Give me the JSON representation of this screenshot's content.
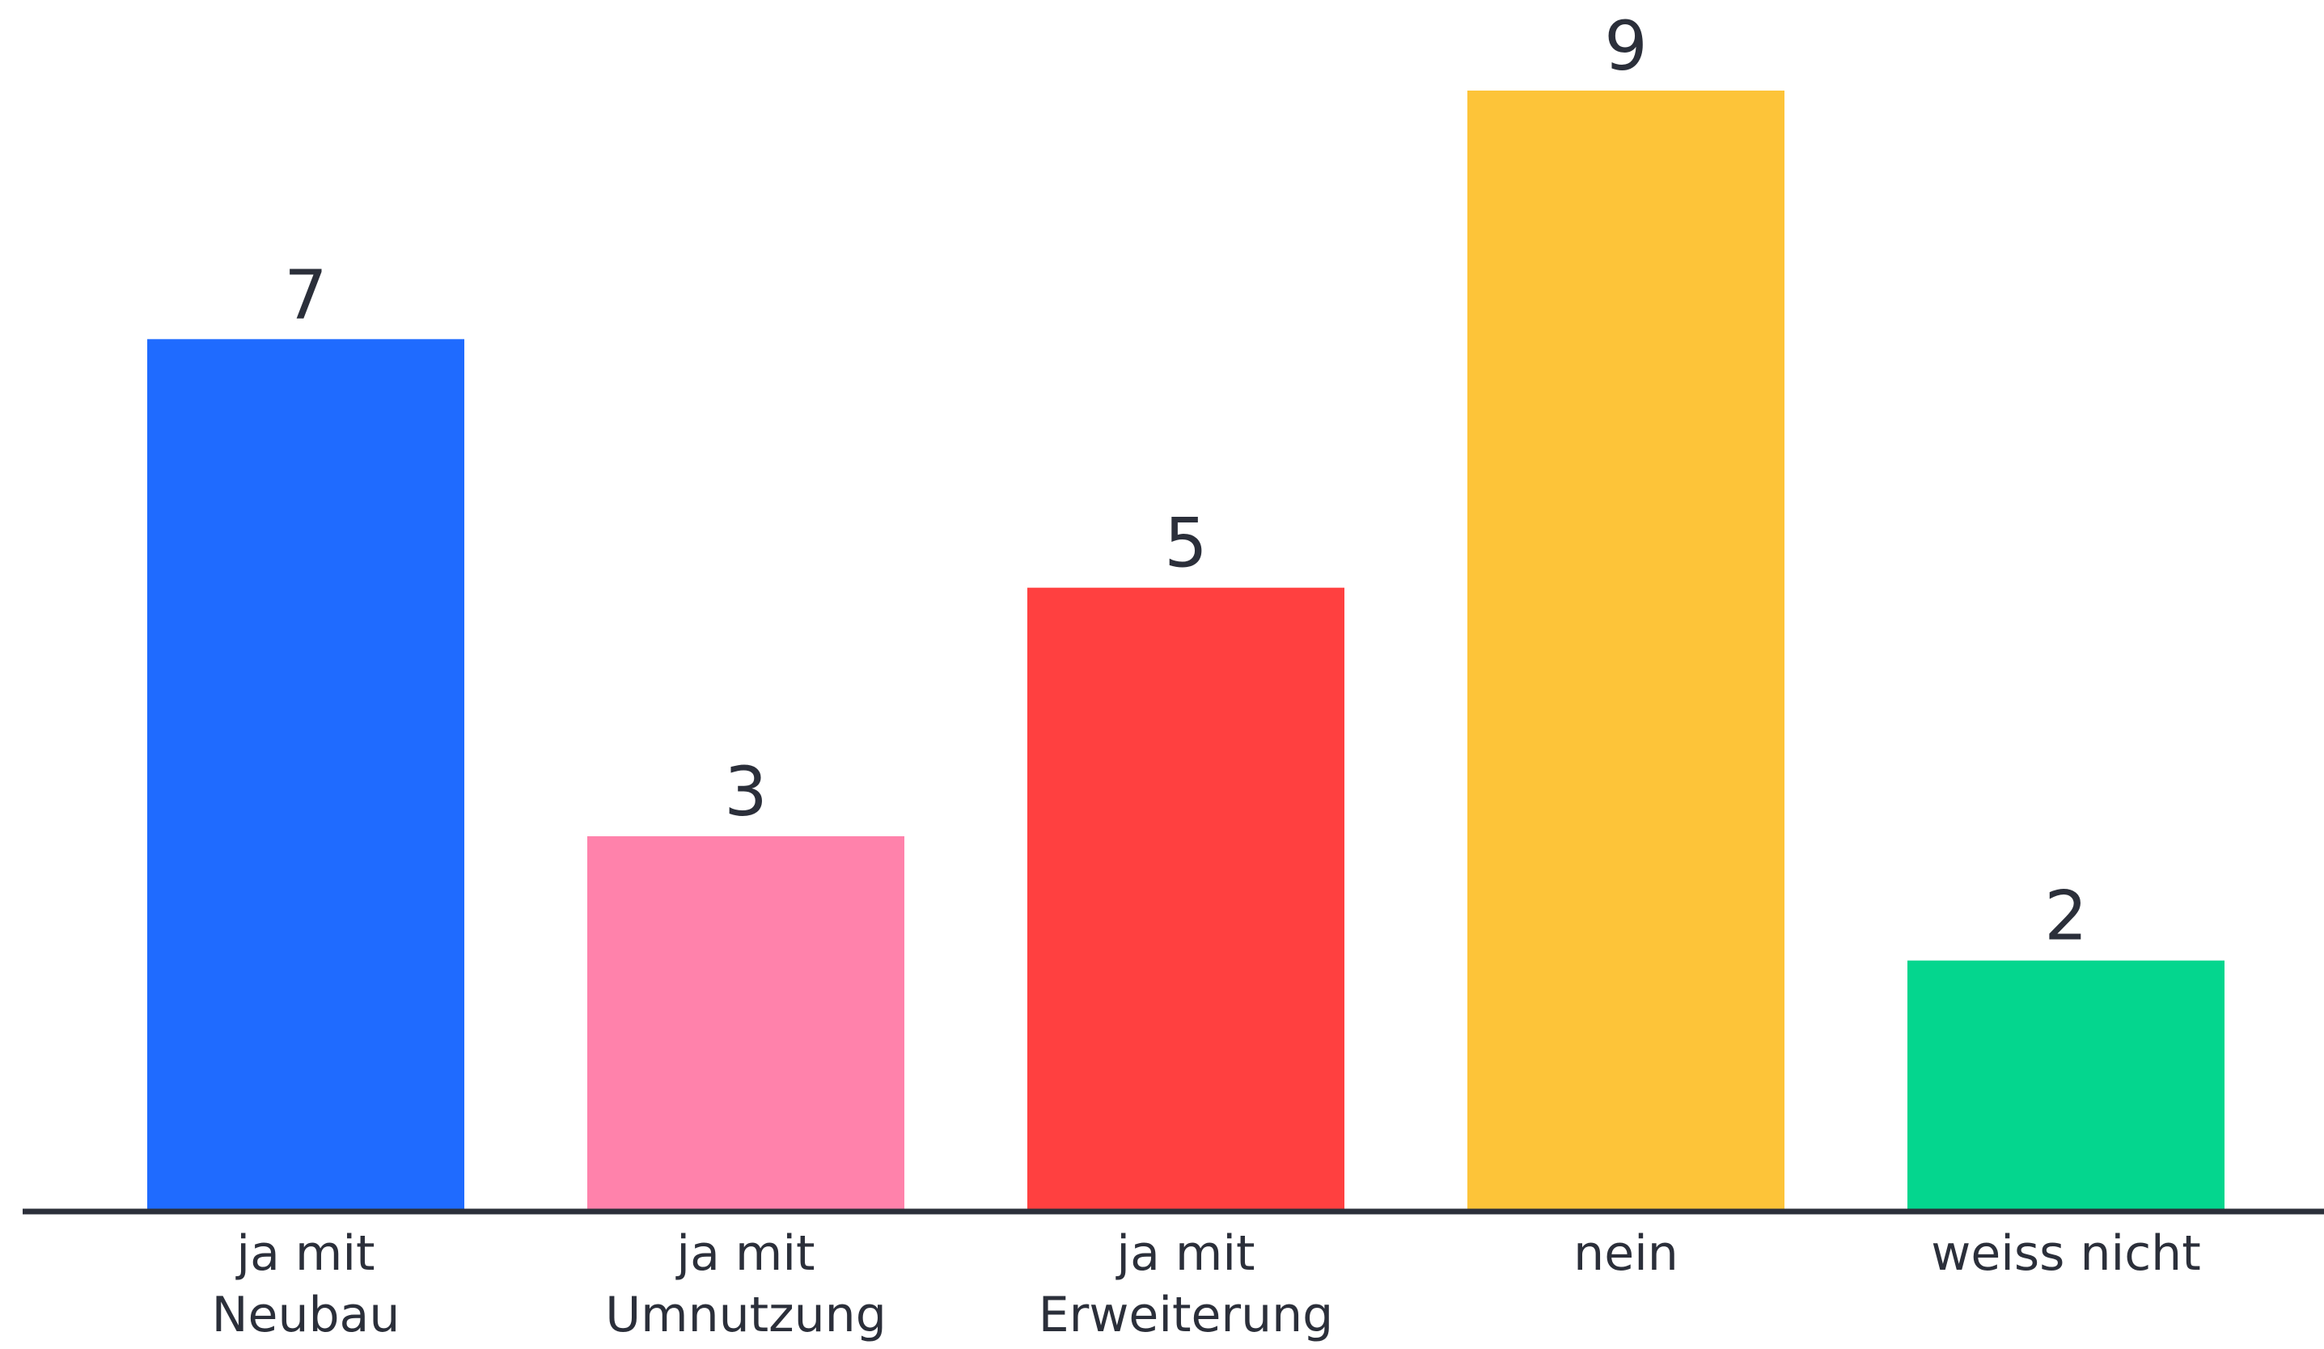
{
  "chart_data": {
    "type": "bar",
    "title": "",
    "xlabel": "",
    "ylabel": "",
    "categories": [
      [
        "ja mit",
        "Neubau"
      ],
      [
        "ja mit",
        "Umnutzung"
      ],
      [
        "ja mit",
        "Erweiterung"
      ],
      [
        "nein"
      ],
      [
        "weiss nicht"
      ]
    ],
    "values": [
      7,
      3,
      5,
      9,
      2
    ],
    "colors": [
      "#1f6bff",
      "#ff82ab",
      "#ff4040",
      "#fdc439",
      "#04d68e"
    ],
    "axis_color": "#2b2f3a",
    "ylim": [
      0,
      9
    ],
    "grid": false,
    "show_value_labels": true
  }
}
